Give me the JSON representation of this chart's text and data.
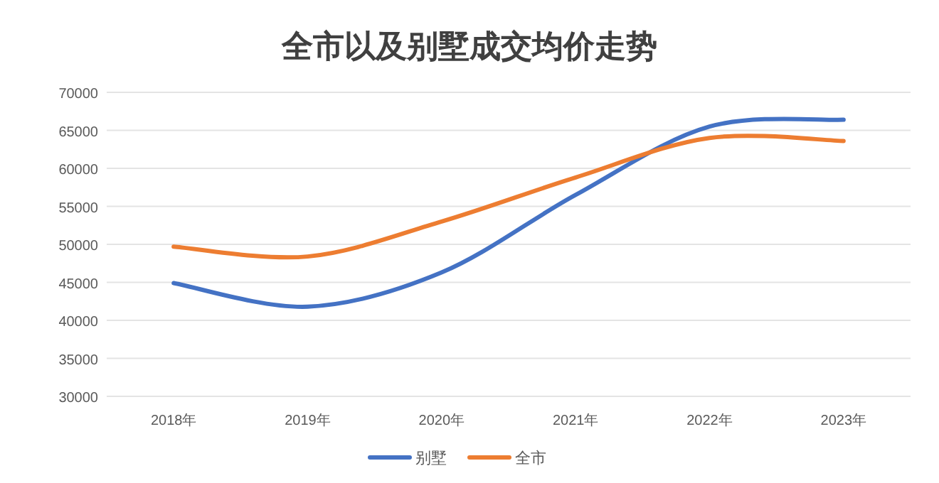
{
  "chart_data": {
    "type": "line",
    "title": "全市以及别墅成交均价走势",
    "categories": [
      "2018年",
      "2019年",
      "2020年",
      "2021年",
      "2022年",
      "2023年"
    ],
    "series": [
      {
        "name": "别墅",
        "color": "#4472c4",
        "values": [
          44900,
          41800,
          46300,
          56500,
          65500,
          66400
        ]
      },
      {
        "name": "全市",
        "color": "#ed7d31",
        "values": [
          49700,
          48400,
          53000,
          58800,
          64000,
          63600
        ]
      }
    ],
    "ylim": [
      30000,
      70000
    ],
    "yticks": [
      30000,
      35000,
      40000,
      45000,
      50000,
      55000,
      60000,
      65000,
      70000
    ],
    "grid": "y",
    "legend": "bottom",
    "marker": "none",
    "line_style": "solid"
  }
}
